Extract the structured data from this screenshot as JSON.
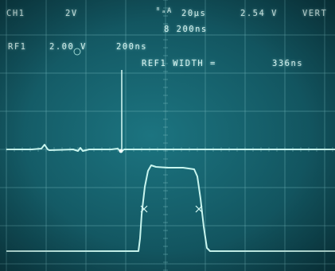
{
  "readouts": {
    "ch1_label": "CH1",
    "ch1_scale": "2V",
    "trigger_icon": "ᴮₐA",
    "timebase": "20µs",
    "trigger_level": "2.54 V",
    "trigger_mode": "VERT",
    "delay": "8 200ns",
    "ref_label": "RF1",
    "ref_scale": "2.00 V",
    "ref_time": "200ns",
    "measurement": "REF1 WIDTH =",
    "measurement_value": "336ns"
  },
  "colors": {
    "screen": "#155e69",
    "trace": "#bff2ea",
    "graticule": "#6fb3b8",
    "text": "#d6f3f0"
  }
}
